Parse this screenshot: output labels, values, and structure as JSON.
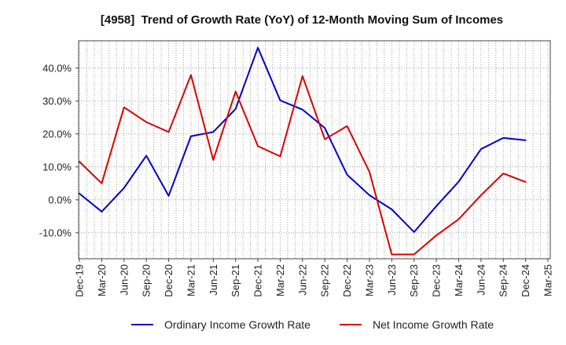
{
  "chart_data": {
    "type": "line",
    "title": "[4958]  Trend of Growth Rate (YoY) of 12-Month Moving Sum of Incomes",
    "categories": [
      "Dec-19",
      "Mar-20",
      "Jun-20",
      "Sep-20",
      "Dec-20",
      "Mar-21",
      "Jun-21",
      "Sep-21",
      "Dec-21",
      "Mar-22",
      "Jun-22",
      "Sep-22",
      "Dec-22",
      "Mar-23",
      "Jun-23",
      "Sep-23",
      "Dec-23",
      "Mar-24",
      "Jun-24",
      "Sep-24",
      "Dec-24",
      "Mar-25"
    ],
    "yticks": [
      -10,
      0,
      10,
      20,
      30,
      40
    ],
    "ytick_labels": [
      "-10.0%",
      "0.0%",
      "10.0%",
      "20.0%",
      "30.0%",
      "40.0%"
    ],
    "ylim": [
      -17.9,
      48.3
    ],
    "grid": true,
    "legend": "bottom",
    "series": [
      {
        "name": "Ordinary Income Growth Rate",
        "color": "#0000cc",
        "values": [
          1.9,
          -3.6,
          3.6,
          13.4,
          1.2,
          19.3,
          20.6,
          27.6,
          46.2,
          30.2,
          27.4,
          21.8,
          7.6,
          1.4,
          -2.9,
          -9.8,
          -1.9,
          5.5,
          15.4,
          18.8,
          18.1,
          null
        ]
      },
      {
        "name": "Net Income Growth Rate",
        "color": "#dd0000",
        "values": [
          11.6,
          5.0,
          28.1,
          23.6,
          20.6,
          37.9,
          12.1,
          32.9,
          16.3,
          13.2,
          37.6,
          18.4,
          22.4,
          8.5,
          -16.6,
          -16.6,
          -10.8,
          -5.9,
          1.4,
          8.0,
          5.4,
          null
        ]
      }
    ]
  }
}
